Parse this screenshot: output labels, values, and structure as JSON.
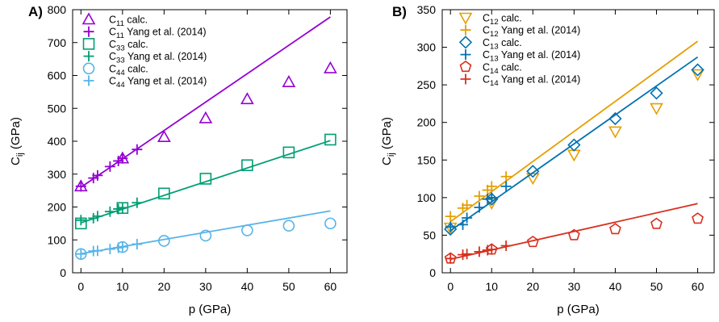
{
  "chart_data": [
    {
      "type": "scatter",
      "panel_label": "A)",
      "xlabel": "p (GPa)",
      "ylabel": "C",
      "ylabel_sub": "ij",
      "ylabel_unit": " (GPa)",
      "xlim": [
        -2,
        64
      ],
      "ylim": [
        0,
        800
      ],
      "xticks": [
        0,
        10,
        20,
        30,
        40,
        50,
        60
      ],
      "yticks": [
        0,
        100,
        200,
        300,
        400,
        500,
        600,
        700,
        800
      ],
      "grid": false,
      "legend_position": "top-left",
      "series": [
        {
          "name": "C",
          "sub": "11",
          "suffix": " calc.",
          "marker": "triangle",
          "color": "#9400d3",
          "x": [
            0,
            10,
            20,
            30,
            40,
            50,
            60
          ],
          "y": [
            263,
            348,
            413,
            470,
            528,
            580,
            622
          ]
        },
        {
          "name": "C",
          "sub": "11",
          "suffix": " Yang et al. (2014)",
          "marker": "plus",
          "color": "#9400d3",
          "x": [
            0,
            3,
            4,
            7,
            9,
            10,
            13.5
          ],
          "y": [
            263,
            288,
            296,
            323,
            340,
            348,
            375
          ],
          "fit": {
            "x": [
              0,
              60
            ],
            "y": [
              260,
              778
            ]
          }
        },
        {
          "name": "C",
          "sub": "33",
          "suffix": " calc.",
          "marker": "square",
          "color": "#009e73",
          "x": [
            0,
            10,
            20,
            30,
            40,
            50,
            60
          ],
          "y": [
            150,
            197,
            241,
            286,
            327,
            366,
            405
          ]
        },
        {
          "name": "C",
          "sub": "33",
          "suffix": " Yang et al. (2014)",
          "marker": "plus",
          "color": "#009e73",
          "x": [
            0,
            3,
            4,
            7,
            9,
            10,
            13.5
          ],
          "y": [
            160,
            166,
            172,
            186,
            194,
            198,
            213
          ],
          "fit": {
            "x": [
              0,
              60
            ],
            "y": [
              152,
              402
            ]
          }
        },
        {
          "name": "C",
          "sub": "44",
          "suffix": " calc.",
          "marker": "circle",
          "color": "#56b4e9",
          "x": [
            0,
            10,
            20,
            30,
            40,
            50,
            60
          ],
          "y": [
            57,
            78,
            97,
            113,
            129,
            143,
            150
          ]
        },
        {
          "name": "C",
          "sub": "44",
          "suffix": " Yang et al. (2014)",
          "marker": "plus",
          "color": "#56b4e9",
          "x": [
            0,
            3,
            4,
            7,
            9,
            10,
            13.5
          ],
          "y": [
            57,
            66,
            67,
            72,
            76,
            79,
            87
          ],
          "fit": {
            "x": [
              0,
              60
            ],
            "y": [
              58,
              188
            ]
          }
        }
      ]
    },
    {
      "type": "scatter",
      "panel_label": "B)",
      "xlabel": "p (GPa)",
      "ylabel": "C",
      "ylabel_sub": "ij",
      "ylabel_unit": " (GPa)",
      "xlim": [
        -2,
        64
      ],
      "ylim": [
        0,
        350
      ],
      "xticks": [
        0,
        10,
        20,
        30,
        40,
        50,
        60
      ],
      "yticks": [
        0,
        50,
        100,
        150,
        200,
        250,
        300,
        350
      ],
      "grid": false,
      "legend_position": "top-left",
      "series": [
        {
          "name": "C",
          "sub": "12",
          "suffix": " calc.",
          "marker": "triangle-down",
          "color": "#e69f00",
          "x": [
            0,
            10,
            20,
            30,
            40,
            50,
            60
          ],
          "y": [
            60,
            93,
            126,
            157,
            188,
            219,
            264
          ]
        },
        {
          "name": "C",
          "sub": "12",
          "suffix": " Yang et al. (2014)",
          "marker": "plus",
          "color": "#e69f00",
          "x": [
            0,
            3,
            4,
            7,
            9,
            10,
            13.5
          ],
          "y": [
            75,
            86,
            90,
            102,
            110,
            115,
            128
          ],
          "fit": {
            "x": [
              0,
              60
            ],
            "y": [
              68,
              308
            ]
          }
        },
        {
          "name": "C",
          "sub": "13",
          "suffix": " calc.",
          "marker": "diamond",
          "color": "#0072b2",
          "x": [
            0,
            10,
            20,
            30,
            40,
            50,
            60
          ],
          "y": [
            58,
            98,
            135,
            170,
            205,
            239,
            270
          ]
        },
        {
          "name": "C",
          "sub": "13",
          "suffix": " Yang et al. (2014)",
          "marker": "plus",
          "color": "#0072b2",
          "x": [
            0,
            3,
            4,
            7,
            9,
            10,
            13.5
          ],
          "y": [
            61,
            64,
            73,
            87,
            98,
            100,
            115
          ],
          "fit": {
            "x": [
              0,
              60
            ],
            "y": [
              56,
              287
            ]
          }
        },
        {
          "name": "C",
          "sub": "14",
          "suffix": " calc.",
          "marker": "pentagon",
          "color": "#d7301f",
          "x": [
            0,
            10,
            20,
            30,
            40,
            50,
            60
          ],
          "y": [
            19,
            31,
            41,
            50,
            58,
            65,
            72
          ]
        },
        {
          "name": "C",
          "sub": "14",
          "suffix": " Yang et al. (2014)",
          "marker": "plus",
          "color": "#d7301f",
          "x": [
            0,
            3,
            4,
            7,
            9,
            10,
            13.5
          ],
          "y": [
            19,
            24,
            25,
            28,
            30,
            31,
            36
          ],
          "fit": {
            "x": [
              0,
              60
            ],
            "y": [
              18,
              92
            ]
          }
        }
      ]
    }
  ]
}
